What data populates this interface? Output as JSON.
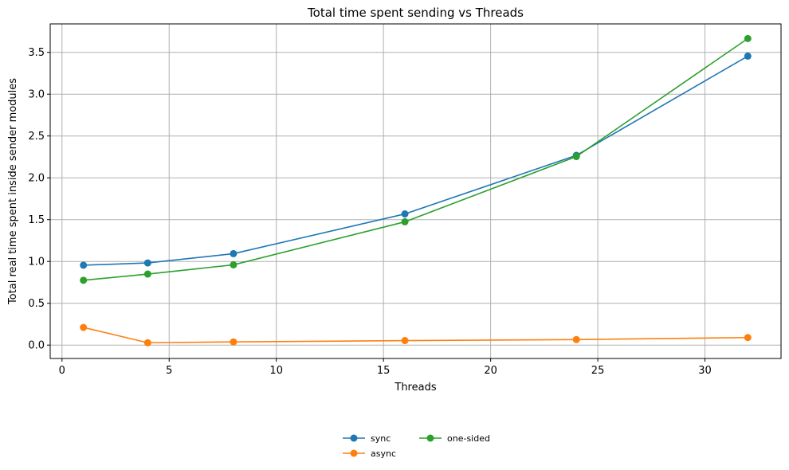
{
  "chart_data": {
    "type": "line",
    "title": "Total time spent sending vs Threads",
    "xlabel": "Threads",
    "ylabel": "Total real time spent inside sender modules",
    "xlim": [
      -0.55,
      33.55
    ],
    "ylim": [
      -0.16,
      3.84
    ],
    "xticks": [
      0,
      5,
      10,
      15,
      20,
      25,
      30
    ],
    "yticks": [
      0.0,
      0.5,
      1.0,
      1.5,
      2.0,
      2.5,
      3.0,
      3.5
    ],
    "grid": true,
    "legend_position": "bottom-center",
    "x": [
      1,
      4,
      8,
      16,
      24,
      32
    ],
    "series": [
      {
        "name": "sync",
        "color": "#1f77b4",
        "values": [
          0.955,
          0.982,
          1.093,
          1.568,
          2.268,
          3.455
        ]
      },
      {
        "name": "async",
        "color": "#ff7f0e",
        "values": [
          0.211,
          0.028,
          0.038,
          0.054,
          0.066,
          0.09
        ]
      },
      {
        "name": "one-sided",
        "color": "#2ca02c",
        "values": [
          0.775,
          0.849,
          0.96,
          1.474,
          2.254,
          3.665
        ]
      }
    ]
  }
}
